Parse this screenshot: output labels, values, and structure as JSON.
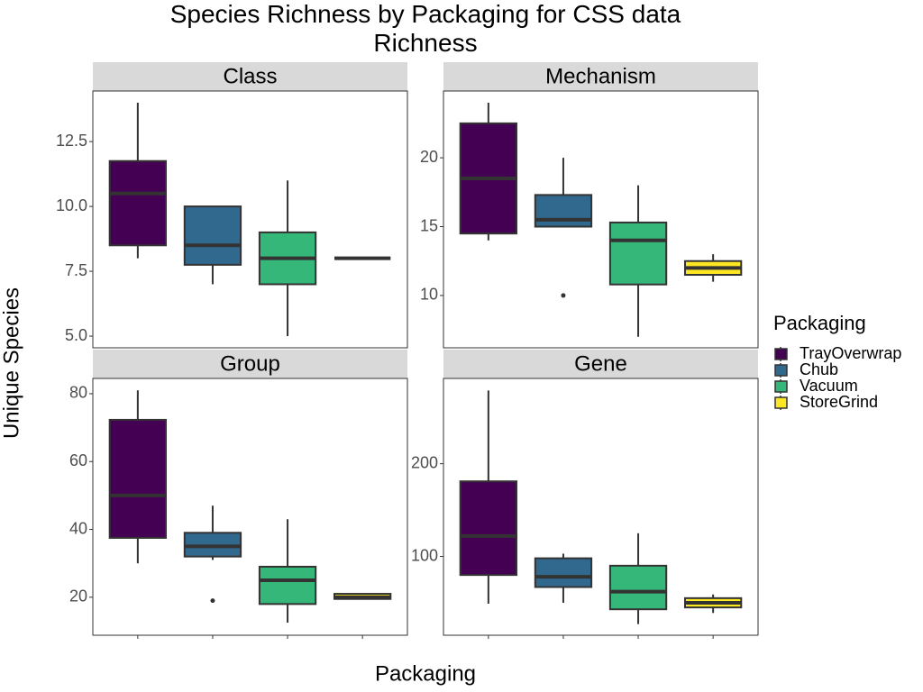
{
  "chart_data": {
    "type": "box",
    "title": "Species Richness by Packaging for CSS data Richness",
    "x_label": "Packaging",
    "y_label": "Unique Species",
    "legend_title": "Packaging",
    "categories": [
      "TrayOverwrap",
      "Chub",
      "Vacuum",
      "StoreGrind"
    ],
    "colors": [
      "#440154",
      "#31688E",
      "#35B779",
      "#FDE725"
    ],
    "facets": [
      {
        "name": "Class",
        "ylim": [
          4.55,
          14.45
        ],
        "yticks": [
          {
            "value": 5,
            "label": "5.0"
          },
          7.5,
          {
            "value": 10,
            "label": "10.0"
          },
          12.5
        ],
        "boxes": [
          {
            "min": 8,
            "q1": 8.5,
            "median": 10.5,
            "q3": 11.75,
            "max": 14,
            "outliers": []
          },
          {
            "min": 7,
            "q1": 7.75,
            "median": 8.5,
            "q3": 10,
            "max": 10,
            "outliers": []
          },
          {
            "min": 5,
            "q1": 7,
            "median": 8,
            "q3": 9,
            "max": 11,
            "outliers": []
          },
          {
            "min": 8,
            "q1": 8,
            "median": 8,
            "q3": 8,
            "max": 8,
            "outliers": []
          }
        ]
      },
      {
        "name": "Mechanism",
        "ylim": [
          6.2,
          24.85
        ],
        "yticks": [
          10,
          15,
          20
        ],
        "boxes": [
          {
            "min": 14,
            "q1": 14.5,
            "median": 18.5,
            "q3": 22.5,
            "max": 24,
            "outliers": []
          },
          {
            "min": 15,
            "q1": 15,
            "median": 15.5,
            "q3": 17.3,
            "max": 20,
            "outliers": [
              10
            ]
          },
          {
            "min": 7,
            "q1": 10.8,
            "median": 14,
            "q3": 15.3,
            "max": 18,
            "outliers": []
          },
          {
            "min": 11,
            "q1": 11.5,
            "median": 12,
            "q3": 12.5,
            "max": 13,
            "outliers": []
          }
        ]
      },
      {
        "name": "Group",
        "ylim": [
          8.8,
          84.5
        ],
        "yticks": [
          20,
          40,
          60,
          80
        ],
        "boxes": [
          {
            "min": 30,
            "q1": 37.5,
            "median": 50,
            "q3": 72.3,
            "max": 81,
            "outliers": []
          },
          {
            "min": 31,
            "q1": 32,
            "median": 35,
            "q3": 39,
            "max": 47,
            "outliers": [
              19
            ]
          },
          {
            "min": 12.5,
            "q1": 18,
            "median": 25,
            "q3": 29,
            "max": 43,
            "outliers": []
          },
          {
            "min": 19.5,
            "q1": 19.5,
            "median": 20,
            "q3": 21,
            "max": 21,
            "outliers": []
          }
        ]
      },
      {
        "name": "Gene",
        "ylim": [
          15,
          292
        ],
        "yticks": [
          100,
          200
        ],
        "boxes": [
          {
            "min": 49,
            "q1": 80,
            "median": 122,
            "q3": 181,
            "max": 279,
            "outliers": []
          },
          {
            "min": 50,
            "q1": 67,
            "median": 78,
            "q3": 98,
            "max": 103,
            "outliers": []
          },
          {
            "min": 27,
            "q1": 43,
            "median": 62,
            "q3": 90,
            "max": 125,
            "outliers": []
          },
          {
            "min": 39,
            "q1": 45,
            "median": 50,
            "q3": 55,
            "max": 59,
            "outliers": []
          }
        ]
      }
    ]
  }
}
